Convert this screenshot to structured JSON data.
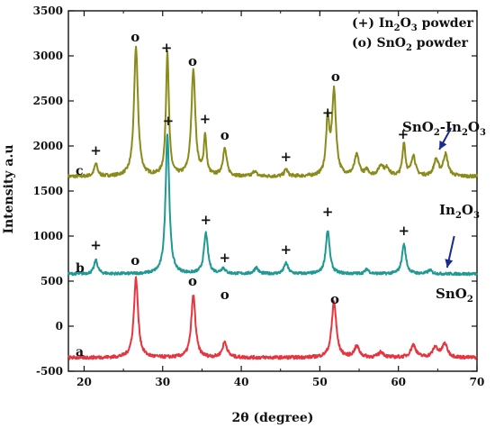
{
  "chart_data": {
    "type": "line",
    "xlabel": "2θ (degree)",
    "ylabel": "Intensity a.u",
    "xlim": [
      18,
      70
    ],
    "ylim": [
      -500,
      3500
    ],
    "x_ticks": [
      20,
      30,
      40,
      50,
      60,
      70
    ],
    "y_ticks": [
      -500,
      0,
      500,
      1000,
      1500,
      2000,
      2500,
      3000,
      3500
    ],
    "legend": {
      "placement": "top-right",
      "entries": [
        {
          "symbol": "(+)",
          "main": "In",
          "sub": "2",
          "main2": "O",
          "sub2": "3",
          "rest": " powder"
        },
        {
          "symbol": "(o)",
          "main": "SnO",
          "sub": "2",
          "main2": "",
          "sub2": "",
          "rest": " powder"
        }
      ]
    },
    "series": [
      {
        "key": "c",
        "sample": "SnO2-In2O3",
        "label_parts": [
          {
            "t": "SnO"
          },
          {
            "t": "2",
            "sub": true
          },
          {
            "t": "-In"
          },
          {
            "t": "2",
            "sub": true
          },
          {
            "t": "O"
          },
          {
            "t": "3",
            "sub": true
          }
        ],
        "color": "#8a8b1a",
        "baseline": 1660,
        "noise": 18,
        "peaks": [
          [
            21.5,
            140,
            0.25
          ],
          [
            26.6,
            1430,
            0.3
          ],
          [
            30.6,
            1380,
            0.22
          ],
          [
            33.9,
            1180,
            0.3
          ],
          [
            35.4,
            440,
            0.2
          ],
          [
            37.9,
            300,
            0.3
          ],
          [
            41.7,
            60,
            0.25
          ],
          [
            45.7,
            80,
            0.25
          ],
          [
            51.0,
            600,
            0.25
          ],
          [
            51.8,
            930,
            0.3
          ],
          [
            54.7,
            230,
            0.35
          ],
          [
            56.0,
            60,
            0.3
          ],
          [
            57.8,
            120,
            0.4
          ],
          [
            58.6,
            80,
            0.3
          ],
          [
            60.7,
            370,
            0.22
          ],
          [
            61.9,
            230,
            0.3
          ],
          [
            64.8,
            180,
            0.35
          ],
          [
            66.0,
            240,
            0.35
          ]
        ],
        "markers": [
          {
            "symbol": "+",
            "x": 21.5,
            "y": 1900
          },
          {
            "symbol": "o",
            "x": 26.5,
            "y": 3160
          },
          {
            "symbol": "+",
            "x": 30.5,
            "y": 3040
          },
          {
            "symbol": "o",
            "x": 33.8,
            "y": 2890
          },
          {
            "symbol": "+",
            "x": 35.4,
            "y": 2250
          },
          {
            "symbol": "o",
            "x": 37.9,
            "y": 2070
          },
          {
            "symbol": "+",
            "x": 45.7,
            "y": 1830
          },
          {
            "symbol": "+",
            "x": 51.0,
            "y": 2320
          },
          {
            "symbol": "o",
            "x": 52.0,
            "y": 2720
          },
          {
            "symbol": "+",
            "x": 60.6,
            "y": 2080
          }
        ],
        "arrow": {
          "x1": 66.7,
          "y1": 2200,
          "x2": 65.2,
          "y2": 1960
        }
      },
      {
        "key": "b",
        "sample": "In2O3",
        "label_parts": [
          {
            "t": "In"
          },
          {
            "t": "2",
            "sub": true
          },
          {
            "t": "O"
          },
          {
            "t": "3",
            "sub": true
          }
        ],
        "color": "#1f9a92",
        "baseline": 580,
        "noise": 15,
        "peaks": [
          [
            21.5,
            150,
            0.28
          ],
          [
            30.6,
            1560,
            0.28
          ],
          [
            35.5,
            450,
            0.3
          ],
          [
            37.7,
            60,
            0.3
          ],
          [
            41.9,
            70,
            0.3
          ],
          [
            45.7,
            120,
            0.3
          ],
          [
            51.0,
            480,
            0.3
          ],
          [
            56.0,
            50,
            0.3
          ],
          [
            60.7,
            330,
            0.3
          ],
          [
            64.0,
            40,
            0.3
          ]
        ],
        "markers": [
          {
            "symbol": "+",
            "x": 21.5,
            "y": 850
          },
          {
            "symbol": "o",
            "x": 26.5,
            "y": 680
          },
          {
            "symbol": "+",
            "x": 30.7,
            "y": 2230
          },
          {
            "symbol": "+",
            "x": 35.5,
            "y": 1130
          },
          {
            "symbol": "+",
            "x": 37.9,
            "y": 710
          },
          {
            "symbol": "+",
            "x": 45.7,
            "y": 800
          },
          {
            "symbol": "+",
            "x": 51.0,
            "y": 1220
          },
          {
            "symbol": "+",
            "x": 60.7,
            "y": 1010
          }
        ],
        "arrow": {
          "x1": 67.1,
          "y1": 1000,
          "x2": 66.2,
          "y2": 650
        }
      },
      {
        "key": "a",
        "sample": "SnO2",
        "label_parts": [
          {
            "t": "SnO"
          },
          {
            "t": "2",
            "sub": true
          }
        ],
        "color": "#e8343f",
        "baseline": -350,
        "noise": 18,
        "peaks": [
          [
            26.6,
            880,
            0.32
          ],
          [
            33.9,
            690,
            0.32
          ],
          [
            37.9,
            170,
            0.35
          ],
          [
            51.8,
            620,
            0.35
          ],
          [
            54.7,
            120,
            0.4
          ],
          [
            57.8,
            60,
            0.4
          ],
          [
            61.9,
            140,
            0.4
          ],
          [
            64.7,
            110,
            0.4
          ],
          [
            65.9,
            150,
            0.4
          ]
        ],
        "markers": [
          {
            "symbol": "o",
            "x": 33.8,
            "y": 450
          },
          {
            "symbol": "o",
            "x": 37.9,
            "y": 300
          },
          {
            "symbol": "o",
            "x": 51.9,
            "y": 250
          }
        ],
        "arrow": null
      }
    ]
  }
}
